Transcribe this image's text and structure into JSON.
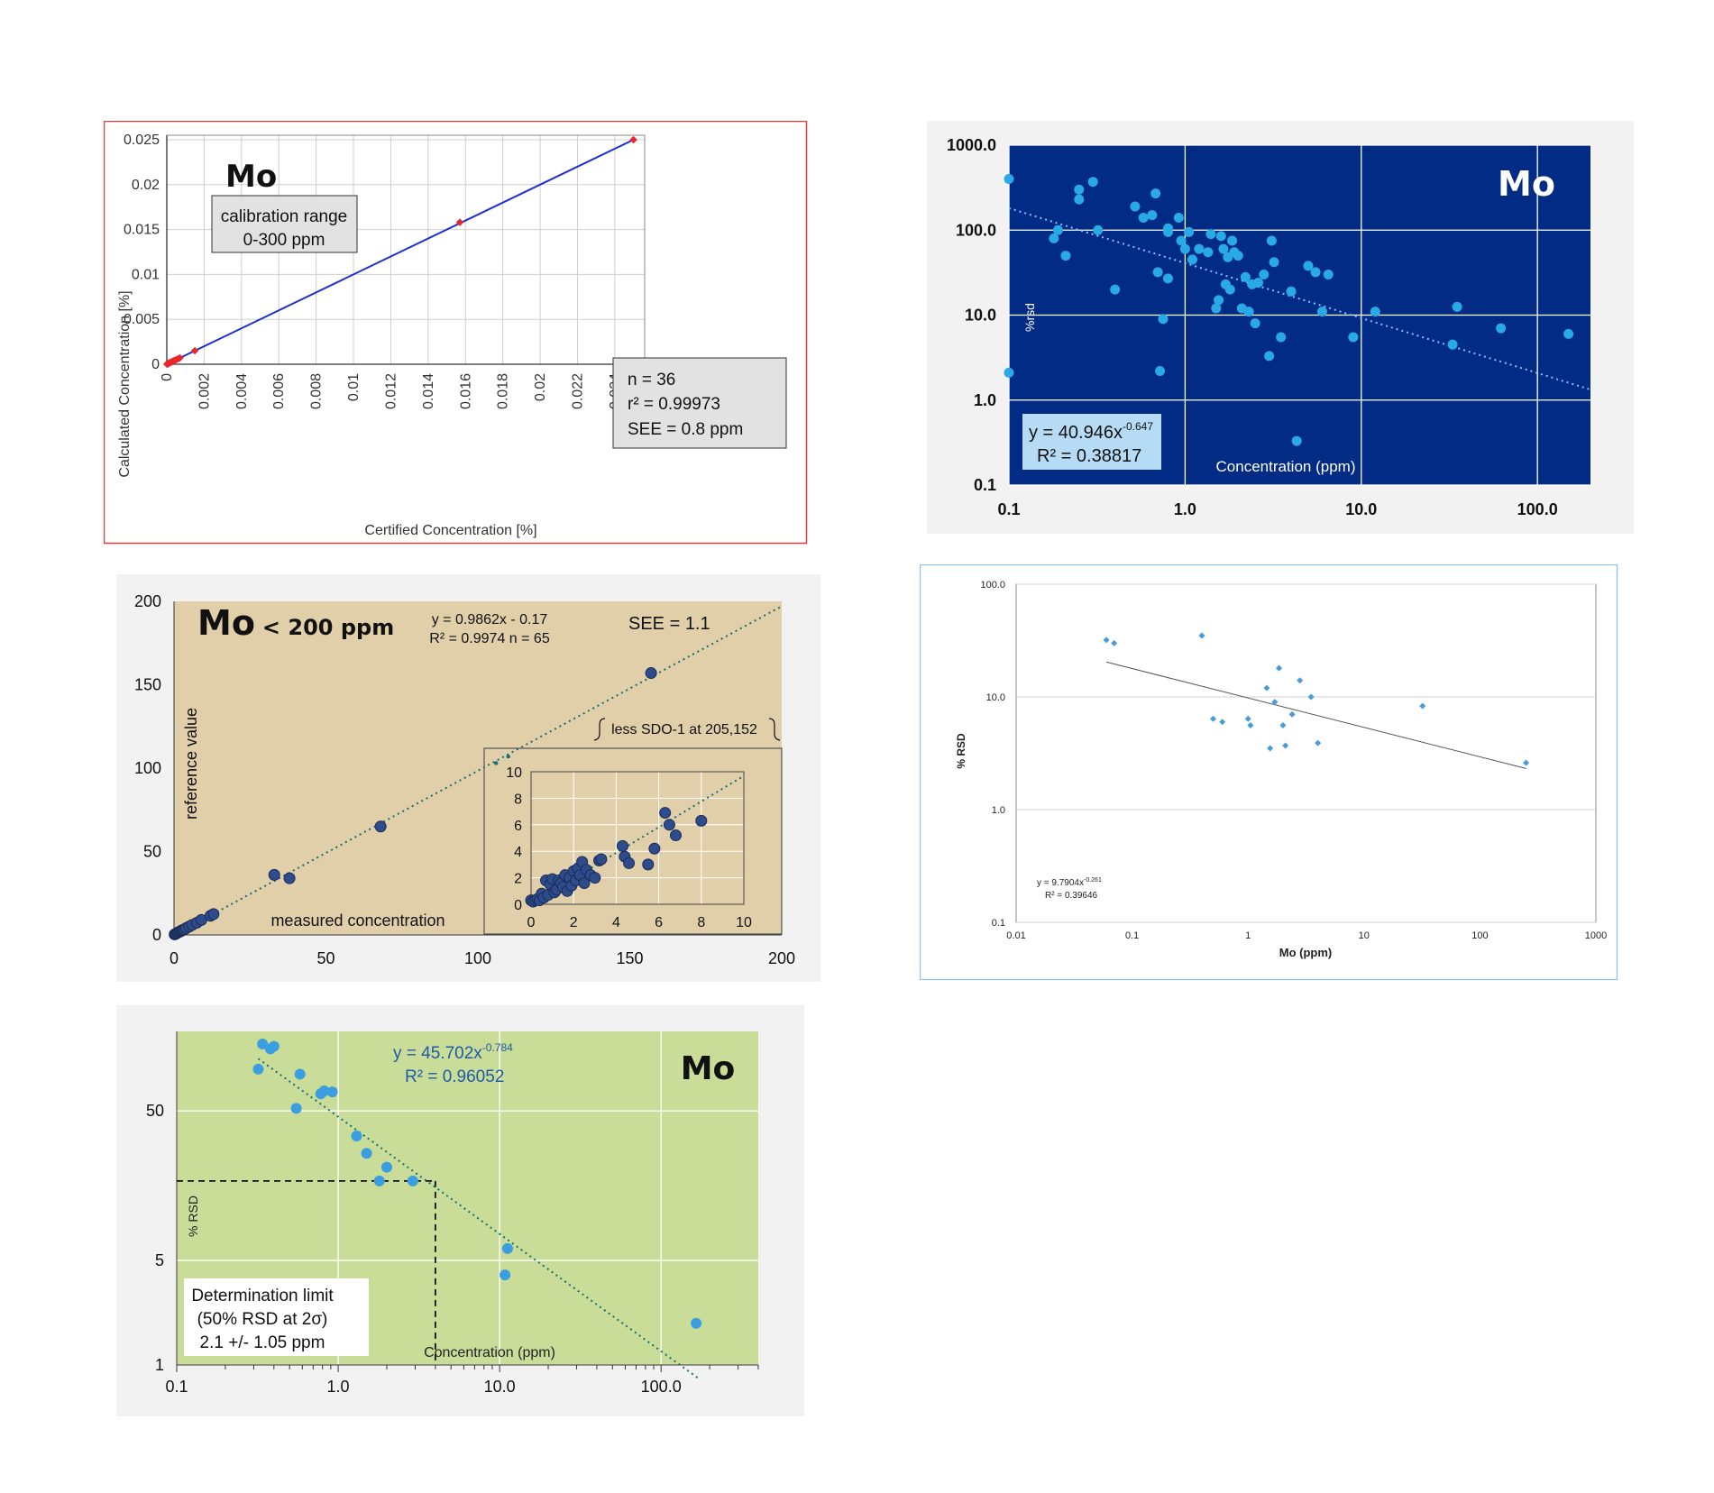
{
  "chart_data": [
    {
      "id": "calibration",
      "type": "scatter",
      "title": "Mo",
      "xlabel": "Certified Concentration [%]",
      "ylabel": "Calculated Concentration [%]",
      "xlim": [
        0,
        0.0256
      ],
      "ylim": [
        0,
        0.0255
      ],
      "xticks": [
        "0",
        "0.002",
        "0.004",
        "0.006",
        "0.008",
        "0.01",
        "0.012",
        "0.014",
        "0.016",
        "0.018",
        "0.02",
        "0.022",
        "0.024"
      ],
      "yticks": [
        "0",
        "0.005",
        "0.01",
        "0.015",
        "0.02",
        "0.025"
      ],
      "grid": true,
      "box_label": [
        "calibration range",
        "0-300 ppm"
      ],
      "stats_label": [
        "n = 36",
        "r² = 0.99973",
        "SEE = 0.8 ppm"
      ],
      "fit_line": {
        "x": [
          0,
          0.025
        ],
        "y": [
          0,
          0.025
        ]
      },
      "series": [
        {
          "color": "#e8262b",
          "x": [
            1e-05,
            3e-05,
            5e-05,
            8e-05,
            0.0001,
            0.00012,
            0.00015,
            0.0002,
            0.00025,
            0.0003,
            0.00035,
            0.0004,
            0.0005,
            0.0006,
            0.0007,
            0.0015,
            0.0157,
            0.025
          ],
          "y": [
            1e-05,
            3e-05,
            5e-05,
            8e-05,
            0.0001,
            0.00012,
            0.00015,
            0.0002,
            0.00025,
            0.0003,
            0.00035,
            0.0004,
            0.0005,
            0.0006,
            0.0007,
            0.0015,
            0.0158,
            0.025
          ]
        }
      ]
    },
    {
      "id": "rsd-blue",
      "type": "scatter",
      "title": "Mo",
      "xlabel": "Concentration (ppm)",
      "ylabel": "%rsd",
      "xscale": "log",
      "yscale": "log",
      "xlim": [
        0.1,
        200
      ],
      "ylim": [
        0.1,
        1000
      ],
      "xticks": [
        "0.1",
        "1.0",
        "10.0",
        "100.0"
      ],
      "yticks": [
        "0.1",
        "1.0",
        "10.0",
        "100.0",
        "1000.0"
      ],
      "grid": true,
      "equation": [
        "y = 40.946x",
        "-0.647",
        "R² = 0.38817"
      ],
      "fit": {
        "a": 40.946,
        "b": -0.647,
        "x": [
          0.1,
          200
        ]
      },
      "series": [
        {
          "color": "#29a9e6",
          "x": [
            0.1,
            0.1,
            0.18,
            0.19,
            0.21,
            0.25,
            0.25,
            0.3,
            0.32,
            0.4,
            0.52,
            0.58,
            0.65,
            0.68,
            0.7,
            0.72,
            0.75,
            0.8,
            0.8,
            0.8,
            0.92,
            0.95,
            1.0,
            1.05,
            1.1,
            1.2,
            1.35,
            1.4,
            1.5,
            1.55,
            1.6,
            1.65,
            1.7,
            1.75,
            1.8,
            1.85,
            1.9,
            2.0,
            2.1,
            2.2,
            2.3,
            2.4,
            2.5,
            2.6,
            2.8,
            3.0,
            3.1,
            3.2,
            3.5,
            4.0,
            4.3,
            5.0,
            5.5,
            6.0,
            6.5,
            9.0,
            12.0,
            33.0,
            35.0,
            62.0,
            150.0
          ],
          "y": [
            400,
            2.1,
            80,
            100,
            50,
            300,
            230,
            370,
            100,
            20,
            190,
            140,
            150,
            270,
            32,
            2.2,
            9,
            105,
            95,
            27,
            140,
            75,
            60,
            95,
            45,
            60,
            55,
            90,
            12,
            15,
            85,
            60,
            23,
            48,
            20,
            75,
            55,
            50,
            12,
            28,
            11,
            23,
            8,
            24,
            30,
            3.3,
            75,
            42,
            5.5,
            19,
            0.33,
            38,
            32,
            11,
            30,
            5.5,
            11,
            4.5,
            12.5,
            7,
            6
          ]
        }
      ]
    },
    {
      "id": "reference",
      "type": "scatter",
      "title": "Mo",
      "subtitle": "< 200 ppm",
      "xlabel": "measured concentration",
      "ylabel": "reference value",
      "xlim": [
        0,
        200
      ],
      "ylim": [
        0,
        200
      ],
      "xticks": [
        "0",
        "50",
        "100",
        "150",
        "200"
      ],
      "yticks": [
        "0",
        "50",
        "100",
        "150",
        "200"
      ],
      "equation": [
        "y = 0.9862x - 0.17",
        "R² = 0.9974   n = 65"
      ],
      "see_label": "SEE = 1.1",
      "bracket_label": "less SDO-1 at 205,152",
      "fit": {
        "slope": 0.9862,
        "intercept": -0.17,
        "x": [
          0,
          200
        ]
      },
      "series": [
        {
          "name": "main",
          "color": "#2e4b8c",
          "x": [
            0.2,
            0.5,
            0.8,
            1.2,
            1.5,
            2.0,
            2.3,
            2.7,
            3.0,
            3.5,
            4.0,
            5.0,
            6.0,
            7.5,
            9.0,
            12.0,
            13.0,
            33.0,
            38.0,
            68.0,
            157.0
          ],
          "y": [
            0.3,
            0.6,
            0.9,
            1.4,
            1.6,
            2.0,
            2.5,
            2.7,
            3.1,
            3.4,
            4.1,
            5.0,
            6.0,
            7.3,
            9.0,
            11.5,
            12.5,
            36.0,
            34.0,
            65.0,
            157.0
          ]
        },
        {
          "name": "inset",
          "color": "#2e4b8c",
          "xlim": [
            0,
            10
          ],
          "ylim": [
            0,
            10
          ],
          "xticks": [
            "0",
            "2",
            "4",
            "6",
            "8",
            "10"
          ],
          "yticks": [
            "0",
            "2",
            "4",
            "6",
            "8",
            "10"
          ],
          "x": [
            0.0,
            0.1,
            0.2,
            0.3,
            0.4,
            0.5,
            0.6,
            0.7,
            0.8,
            0.9,
            1.0,
            1.1,
            1.2,
            1.3,
            1.4,
            1.5,
            1.6,
            1.7,
            1.8,
            1.9,
            2.0,
            2.1,
            2.2,
            2.3,
            2.4,
            2.5,
            2.6,
            2.8,
            3.0,
            3.2,
            3.3,
            4.3,
            4.4,
            4.6,
            5.5,
            5.8,
            6.3,
            6.5,
            6.8,
            8.0
          ],
          "y": [
            0.3,
            0.2,
            0.3,
            0.4,
            0.3,
            0.8,
            0.5,
            1.8,
            0.7,
            1.5,
            1.9,
            0.9,
            1.1,
            1.8,
            1.6,
            1.3,
            2.2,
            1.0,
            2.0,
            1.4,
            2.5,
            1.8,
            2.7,
            2.2,
            3.2,
            1.6,
            2.6,
            2.2,
            2.0,
            3.3,
            3.4,
            4.4,
            3.6,
            3.1,
            3.0,
            4.2,
            6.9,
            6.0,
            5.2,
            6.3
          ]
        }
      ]
    },
    {
      "id": "rsd-light",
      "type": "scatter",
      "xlabel": "Mo (ppm)",
      "ylabel": "% RSD",
      "xscale": "log",
      "yscale": "log",
      "xlim": [
        0.01,
        1000
      ],
      "ylim": [
        0.1,
        100
      ],
      "xticks": [
        "0.01",
        "0.1",
        "1",
        "10",
        "100",
        "1000"
      ],
      "yticks": [
        "0.1",
        "1.0",
        "10.0",
        "100.0"
      ],
      "grid": true,
      "equation": [
        "y = 9.7904x",
        "-0.261",
        "R² = 0.39646"
      ],
      "fit": {
        "a": 9.7904,
        "b": -0.261,
        "x": [
          0.06,
          250
        ]
      },
      "series": [
        {
          "color": "#4a9cd6",
          "x": [
            0.06,
            0.07,
            0.4,
            0.5,
            0.6,
            1.0,
            1.05,
            1.45,
            1.55,
            1.7,
            1.85,
            2.0,
            2.1,
            2.4,
            2.8,
            3.5,
            4.0,
            32.0,
            250.0
          ],
          "y": [
            32,
            30,
            35,
            6.4,
            6.0,
            6.4,
            5.6,
            12,
            3.5,
            9,
            18,
            5.6,
            3.7,
            7,
            14,
            10,
            3.9,
            8.3,
            2.6
          ]
        }
      ]
    },
    {
      "id": "rsd-green",
      "type": "scatter",
      "title": "Mo",
      "xlabel": "Concentration (ppm)",
      "ylabel": "% RSD",
      "xscale": "log",
      "yscale": "log",
      "xlim": [
        0.1,
        400
      ],
      "ylim": [
        1,
        170
      ],
      "xticks": [
        "0.1",
        "1.0",
        "10.0",
        "100.0"
      ],
      "yticks": [
        "1",
        "5",
        "50"
      ],
      "grid": true,
      "equation": [
        "y = 45.702x",
        "-0.784",
        "R² = 0.96052"
      ],
      "box_label": [
        "Determination limit",
        "(50% RSD at 2σ)",
        "2.1 +/- 1.05 ppm"
      ],
      "fit": {
        "a": 45.702,
        "b": -0.784,
        "x": [
          0.32,
          170
        ]
      },
      "limit": {
        "x": 4.0,
        "y": 17.0
      },
      "series": [
        {
          "color": "#3b9ee0",
          "x": [
            0.32,
            0.34,
            0.38,
            0.4,
            0.55,
            0.58,
            0.78,
            0.82,
            0.92,
            1.3,
            1.5,
            1.8,
            2.0,
            2.9,
            10.8,
            11.2,
            165.0
          ],
          "y": [
            95,
            140,
            130,
            135,
            52,
            88,
            65,
            68,
            67,
            34,
            26,
            17,
            21,
            17,
            4.0,
            6.0,
            1.9
          ]
        }
      ]
    }
  ]
}
